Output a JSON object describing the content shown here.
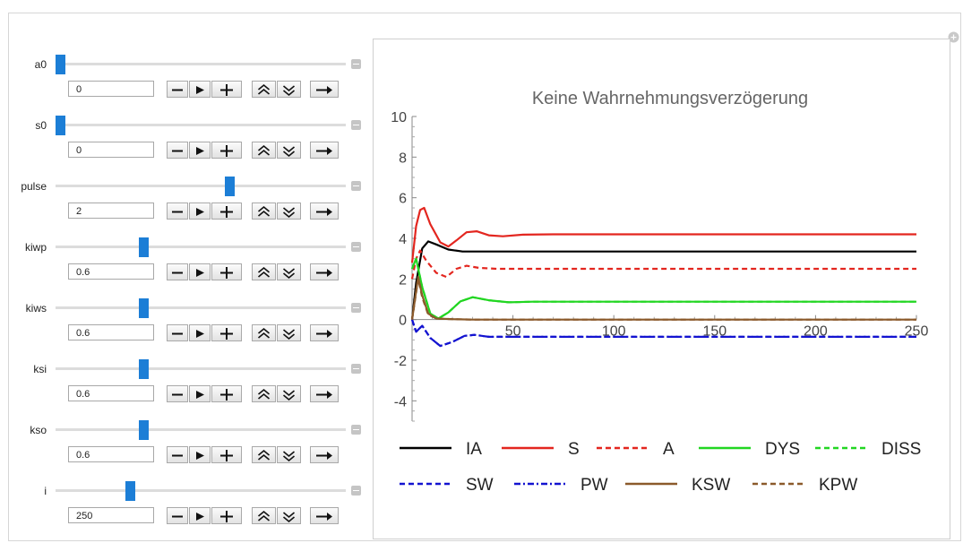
{
  "controls": [
    {
      "name": "a0",
      "value": "0",
      "position": 0.0
    },
    {
      "name": "s0",
      "value": "0",
      "position": 0.0
    },
    {
      "name": "pulse",
      "value": "2",
      "position": 0.61
    },
    {
      "name": "kiwp",
      "value": "0.6",
      "position": 0.3
    },
    {
      "name": "kiws",
      "value": "0.6",
      "position": 0.3
    },
    {
      "name": "ksi",
      "value": "0.6",
      "position": 0.3
    },
    {
      "name": "kso",
      "value": "0.6",
      "position": 0.3
    },
    {
      "name": "i",
      "value": "250",
      "position": 0.25
    }
  ],
  "buttons": [
    "minus-icon",
    "play-icon",
    "plus-icon",
    "faster-icon",
    "slower-icon",
    "direction-icon"
  ],
  "chart_data": {
    "type": "line",
    "title": "Keine Wahrnehmungsverzögerung",
    "xlim": [
      0,
      250
    ],
    "ylim": [
      -5,
      10
    ],
    "xticks": [
      50,
      100,
      150,
      200,
      250
    ],
    "yticks": [
      -4,
      -2,
      0,
      2,
      4,
      6,
      8,
      10
    ],
    "grid": false,
    "legend_position": "bottom",
    "series": [
      {
        "name": "IA",
        "color": "#000000",
        "style": "solid",
        "points": [
          [
            0,
            0
          ],
          [
            2,
            1.8
          ],
          [
            5,
            3.5
          ],
          [
            8,
            3.85
          ],
          [
            12,
            3.7
          ],
          [
            18,
            3.45
          ],
          [
            25,
            3.35
          ],
          [
            40,
            3.35
          ],
          [
            250,
            3.35
          ]
        ]
      },
      {
        "name": "S",
        "color": "#e3261f",
        "style": "solid",
        "points": [
          [
            0,
            2.8
          ],
          [
            2,
            4.6
          ],
          [
            4,
            5.4
          ],
          [
            6,
            5.5
          ],
          [
            9,
            4.7
          ],
          [
            14,
            3.8
          ],
          [
            18,
            3.6
          ],
          [
            22,
            3.9
          ],
          [
            27,
            4.3
          ],
          [
            32,
            4.35
          ],
          [
            38,
            4.15
          ],
          [
            45,
            4.1
          ],
          [
            55,
            4.18
          ],
          [
            70,
            4.2
          ],
          [
            250,
            4.2
          ]
        ]
      },
      {
        "name": "A",
        "color": "#e3261f",
        "style": "dashed",
        "points": [
          [
            0,
            2.0
          ],
          [
            2,
            3.0
          ],
          [
            4,
            3.4
          ],
          [
            7,
            2.9
          ],
          [
            12,
            2.3
          ],
          [
            17,
            2.1
          ],
          [
            22,
            2.5
          ],
          [
            27,
            2.65
          ],
          [
            33,
            2.55
          ],
          [
            42,
            2.5
          ],
          [
            60,
            2.5
          ],
          [
            250,
            2.5
          ]
        ]
      },
      {
        "name": "DYS",
        "color": "#22d622",
        "style": "solid",
        "points": [
          [
            0,
            2.5
          ],
          [
            2,
            3.0
          ],
          [
            5,
            1.6
          ],
          [
            9,
            0.3
          ],
          [
            13,
            0.05
          ],
          [
            18,
            0.35
          ],
          [
            24,
            0.9
          ],
          [
            30,
            1.1
          ],
          [
            38,
            0.95
          ],
          [
            48,
            0.85
          ],
          [
            60,
            0.88
          ],
          [
            250,
            0.88
          ]
        ]
      },
      {
        "name": "DISS",
        "color": "#22d622",
        "style": "dashed",
        "points": [
          [
            0,
            2.5
          ],
          [
            2,
            3.0
          ],
          [
            5,
            1.6
          ],
          [
            9,
            0.3
          ],
          [
            13,
            0.05
          ],
          [
            18,
            0.35
          ],
          [
            24,
            0.9
          ],
          [
            30,
            1.1
          ],
          [
            38,
            0.95
          ],
          [
            48,
            0.85
          ],
          [
            60,
            0.88
          ],
          [
            250,
            0.88
          ]
        ]
      },
      {
        "name": "SW",
        "color": "#1313d0",
        "style": "dashed",
        "points": [
          [
            0,
            0
          ],
          [
            2,
            -0.6
          ],
          [
            5,
            -0.3
          ],
          [
            9,
            -0.9
          ],
          [
            14,
            -1.3
          ],
          [
            20,
            -1.1
          ],
          [
            26,
            -0.8
          ],
          [
            31,
            -0.75
          ],
          [
            38,
            -0.85
          ],
          [
            50,
            -0.85
          ],
          [
            250,
            -0.85
          ]
        ]
      },
      {
        "name": "PW",
        "color": "#1313d0",
        "style": "dashdot",
        "points": [
          [
            0,
            0
          ],
          [
            2,
            -0.6
          ],
          [
            5,
            -0.3
          ],
          [
            9,
            -0.9
          ],
          [
            14,
            -1.3
          ],
          [
            20,
            -1.1
          ],
          [
            26,
            -0.8
          ],
          [
            31,
            -0.75
          ],
          [
            38,
            -0.85
          ],
          [
            50,
            -0.85
          ],
          [
            250,
            -0.85
          ]
        ]
      },
      {
        "name": "KSW",
        "color": "#8b5a2b",
        "style": "solid",
        "points": [
          [
            0,
            0
          ],
          [
            3,
            2.1
          ],
          [
            5,
            1.2
          ],
          [
            8,
            0.3
          ],
          [
            12,
            0.05
          ],
          [
            20,
            0.02
          ],
          [
            30,
            0.0
          ],
          [
            250,
            0.0
          ]
        ]
      },
      {
        "name": "KPW",
        "color": "#8b5a2b",
        "style": "dashed",
        "points": [
          [
            0,
            0
          ],
          [
            3,
            2.0
          ],
          [
            5,
            1.1
          ],
          [
            8,
            0.25
          ],
          [
            12,
            0.05
          ],
          [
            20,
            0.02
          ],
          [
            30,
            0.0
          ],
          [
            250,
            0.0
          ]
        ]
      }
    ]
  }
}
